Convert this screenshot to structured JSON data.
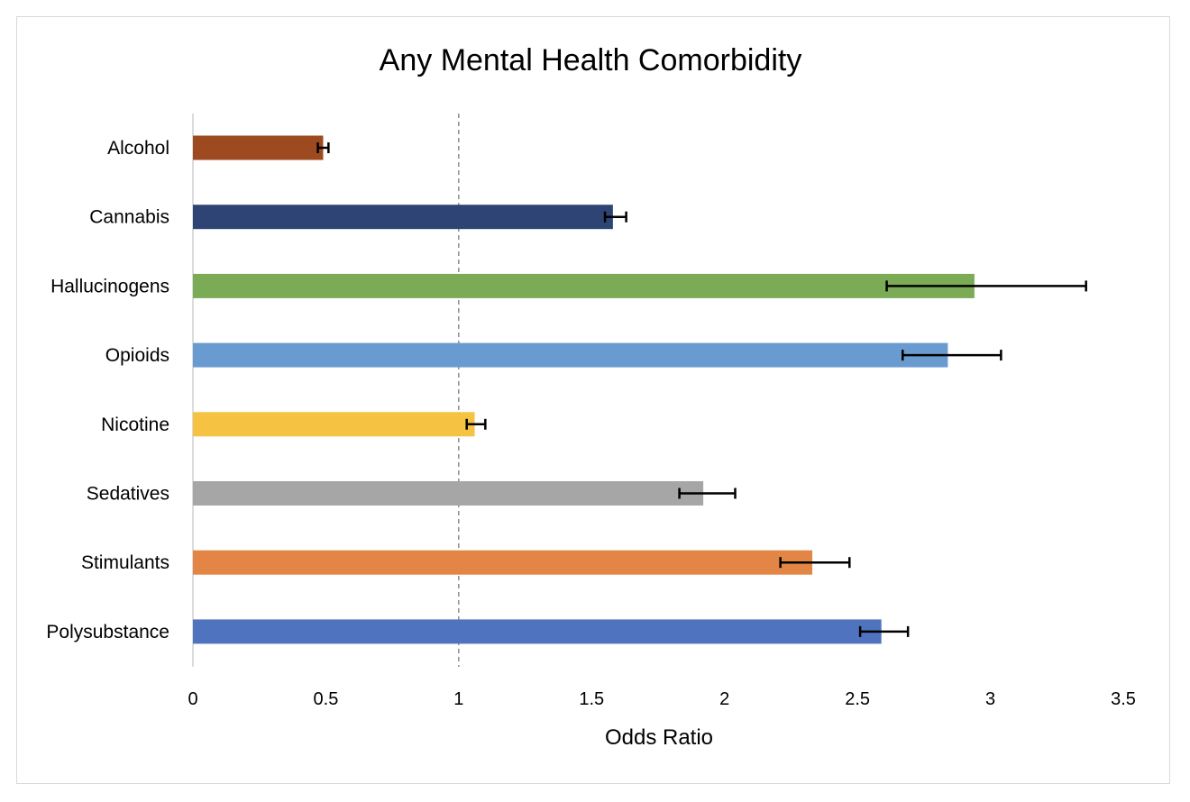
{
  "chart_data": {
    "type": "bar",
    "orientation": "horizontal",
    "title": "Any Mental Health Comorbidity",
    "xlabel": "Odds Ratio",
    "ylabel": "",
    "xlim": [
      0,
      3.5
    ],
    "xticks": [
      "0",
      "0.5",
      "1",
      "1.5",
      "2",
      "2.5",
      "3",
      "3.5"
    ],
    "reference_line": 1,
    "grid": false,
    "legend": "none",
    "categories": [
      "Alcohol",
      "Cannabis",
      "Hallucinogens",
      "Opioids",
      "Nicotine",
      "Sedatives",
      "Stimulants",
      "Polysubstance"
    ],
    "values": [
      0.49,
      1.58,
      2.94,
      2.84,
      1.06,
      1.92,
      2.33,
      2.59
    ],
    "error_low": [
      0.47,
      1.55,
      2.61,
      2.67,
      1.03,
      1.83,
      2.21,
      2.51
    ],
    "error_high": [
      0.51,
      1.63,
      3.36,
      3.04,
      1.1,
      2.04,
      2.47,
      2.69
    ],
    "colors": [
      "#9e4a21",
      "#2e4474",
      "#7bac55",
      "#6a9bd0",
      "#f5c242",
      "#a6a6a6",
      "#e38645",
      "#4f73be"
    ]
  }
}
